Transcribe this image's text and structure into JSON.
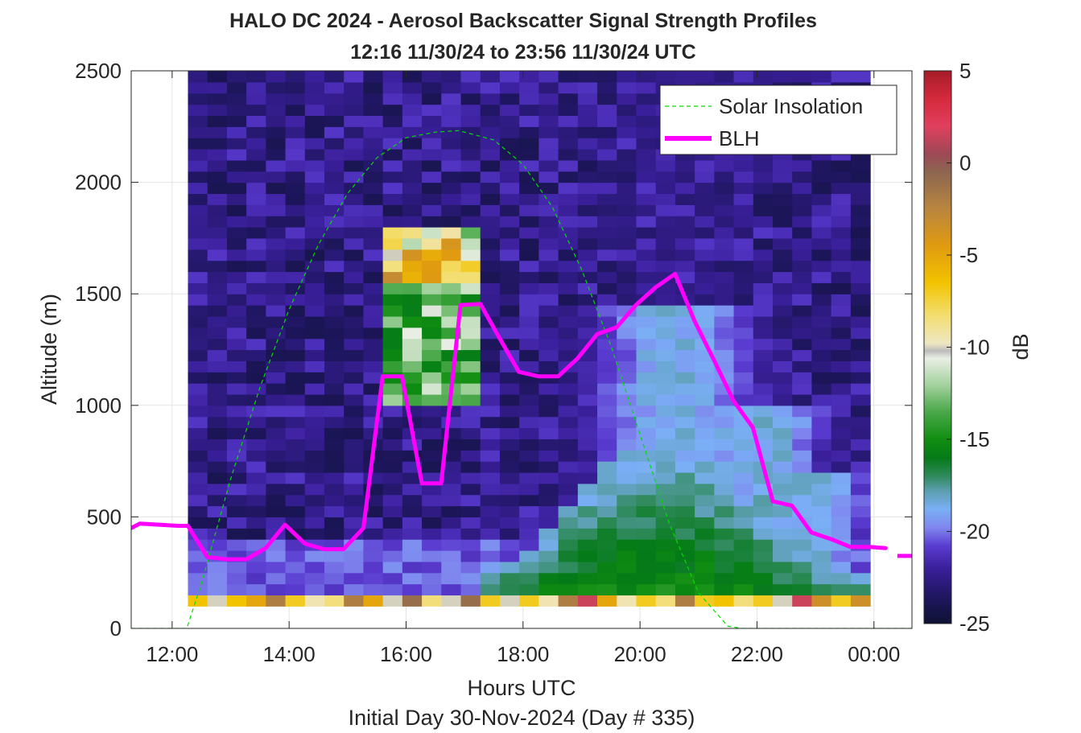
{
  "chart_data": {
    "type": "heatmap",
    "title": "HALO DC 2024 - Aerosol Backscatter Signal Strength Profiles",
    "subtitle": "12:16 11/30/24 to 23:56 11/30/24  UTC",
    "xlabel": "Hours UTC",
    "ylabel": "Altitude (m)",
    "footnote": "Initial Day 30-Nov-2024 (Day # 335)",
    "xlim": [
      11.3,
      24.65
    ],
    "ylim": [
      0,
      2500
    ],
    "x_ticks": [
      {
        "value": 12,
        "label": "12:00"
      },
      {
        "value": 14,
        "label": "14:00"
      },
      {
        "value": 16,
        "label": "16:00"
      },
      {
        "value": 18,
        "label": "18:00"
      },
      {
        "value": 20,
        "label": "20:00"
      },
      {
        "value": 22,
        "label": "22:00"
      },
      {
        "value": 24,
        "label": "00:00"
      }
    ],
    "y_ticks": [
      {
        "value": 0,
        "label": "0"
      },
      {
        "value": 500,
        "label": "500"
      },
      {
        "value": 1000,
        "label": "1000"
      },
      {
        "value": 1500,
        "label": "1500"
      },
      {
        "value": 2000,
        "label": "2000"
      },
      {
        "value": 2500,
        "label": "2500"
      }
    ],
    "grid": true,
    "legend_position": "top-right",
    "heatmap": {
      "x_start": 12.27,
      "x_step": 0.3333,
      "columns": 35,
      "y_start": 100,
      "y_step": 50,
      "rows": 48,
      "units": "dB",
      "note": "values are Aerosol Backscatter Signal Strength in dB, estimated from colours; the grid runs from 100 m to 2500 m and starts at 12:16"
    },
    "colorbar": {
      "label": "dB",
      "range": [
        -25,
        5
      ],
      "ticks": [
        5,
        0,
        -5,
        -10,
        -15,
        -20,
        -25
      ],
      "stops": [
        {
          "value": -25,
          "color": "#0e1233"
        },
        {
          "value": -23.5,
          "color": "#1f1660"
        },
        {
          "value": -22,
          "color": "#3a1f9a"
        },
        {
          "value": -20.8,
          "color": "#5a3bd0"
        },
        {
          "value": -19.8,
          "color": "#7f86ee"
        },
        {
          "value": -18.8,
          "color": "#7aaff5"
        },
        {
          "value": -17.8,
          "color": "#5c9fb0"
        },
        {
          "value": -17,
          "color": "#2f8a5c"
        },
        {
          "value": -16,
          "color": "#057a18"
        },
        {
          "value": -15,
          "color": "#108e10"
        },
        {
          "value": -13.5,
          "color": "#4aa84a"
        },
        {
          "value": -12,
          "color": "#a6d3a0"
        },
        {
          "value": -10.6,
          "color": "#e9eee4"
        },
        {
          "value": -10.2,
          "color": "#bcbcbc"
        },
        {
          "value": -9.8,
          "color": "#eee6c2"
        },
        {
          "value": -8.2,
          "color": "#f3dd6c"
        },
        {
          "value": -6.5,
          "color": "#f2c300"
        },
        {
          "value": -4.5,
          "color": "#e09b10"
        },
        {
          "value": -2.5,
          "color": "#b9853f"
        },
        {
          "value": -0.5,
          "color": "#8c6650"
        },
        {
          "value": 0.5,
          "color": "#9d4855"
        },
        {
          "value": 2,
          "color": "#e0405e"
        },
        {
          "value": 3.5,
          "color": "#d42a3c"
        },
        {
          "value": 5,
          "color": "#a51c28"
        }
      ]
    },
    "series": [
      {
        "name": "Solar Insolation",
        "style": "dashed",
        "color": "#00dd00",
        "x": [
          11.3,
          12.25,
          12.5,
          13.0,
          13.5,
          14.0,
          14.5,
          15.0,
          15.5,
          16.0,
          16.5,
          16.9,
          17.5,
          18.0,
          18.5,
          19.0,
          19.5,
          20.0,
          20.5,
          21.0,
          21.5,
          21.75,
          24.65
        ],
        "y": [
          0,
          0,
          200,
          670,
          1080,
          1430,
          1720,
          1950,
          2110,
          2200,
          2225,
          2232,
          2190,
          2080,
          1890,
          1610,
          1270,
          870,
          470,
          160,
          10,
          0,
          0
        ]
      },
      {
        "name": "BLH",
        "style": "solid",
        "color": "#ff00ff",
        "x": [
          11.3,
          11.45,
          11.77,
          12.1,
          12.27,
          12.6,
          12.93,
          13.27,
          13.6,
          13.93,
          14.27,
          14.6,
          14.93,
          15.27,
          15.6,
          15.93,
          16.27,
          16.6,
          16.93,
          17.27,
          17.6,
          17.93,
          18.27,
          18.6,
          18.93,
          19.27,
          19.6,
          19.93,
          20.27,
          20.6,
          20.93,
          21.27,
          21.6,
          21.93,
          22.27,
          22.6,
          22.93,
          23.27,
          23.6,
          23.93,
          24.2
        ],
        "y": [
          450,
          470,
          465,
          460,
          460,
          320,
          310,
          310,
          360,
          465,
          380,
          355,
          355,
          450,
          1130,
          1130,
          650,
          650,
          1450,
          1455,
          1300,
          1150,
          1130,
          1130,
          1210,
          1320,
          1350,
          1450,
          1530,
          1590,
          1380,
          1200,
          1020,
          900,
          570,
          550,
          430,
          400,
          365,
          365,
          360
        ]
      }
    ],
    "blh_isolated_segment": {
      "x": [
        24.4,
        24.65
      ],
      "y": [
        325,
        325
      ]
    }
  }
}
